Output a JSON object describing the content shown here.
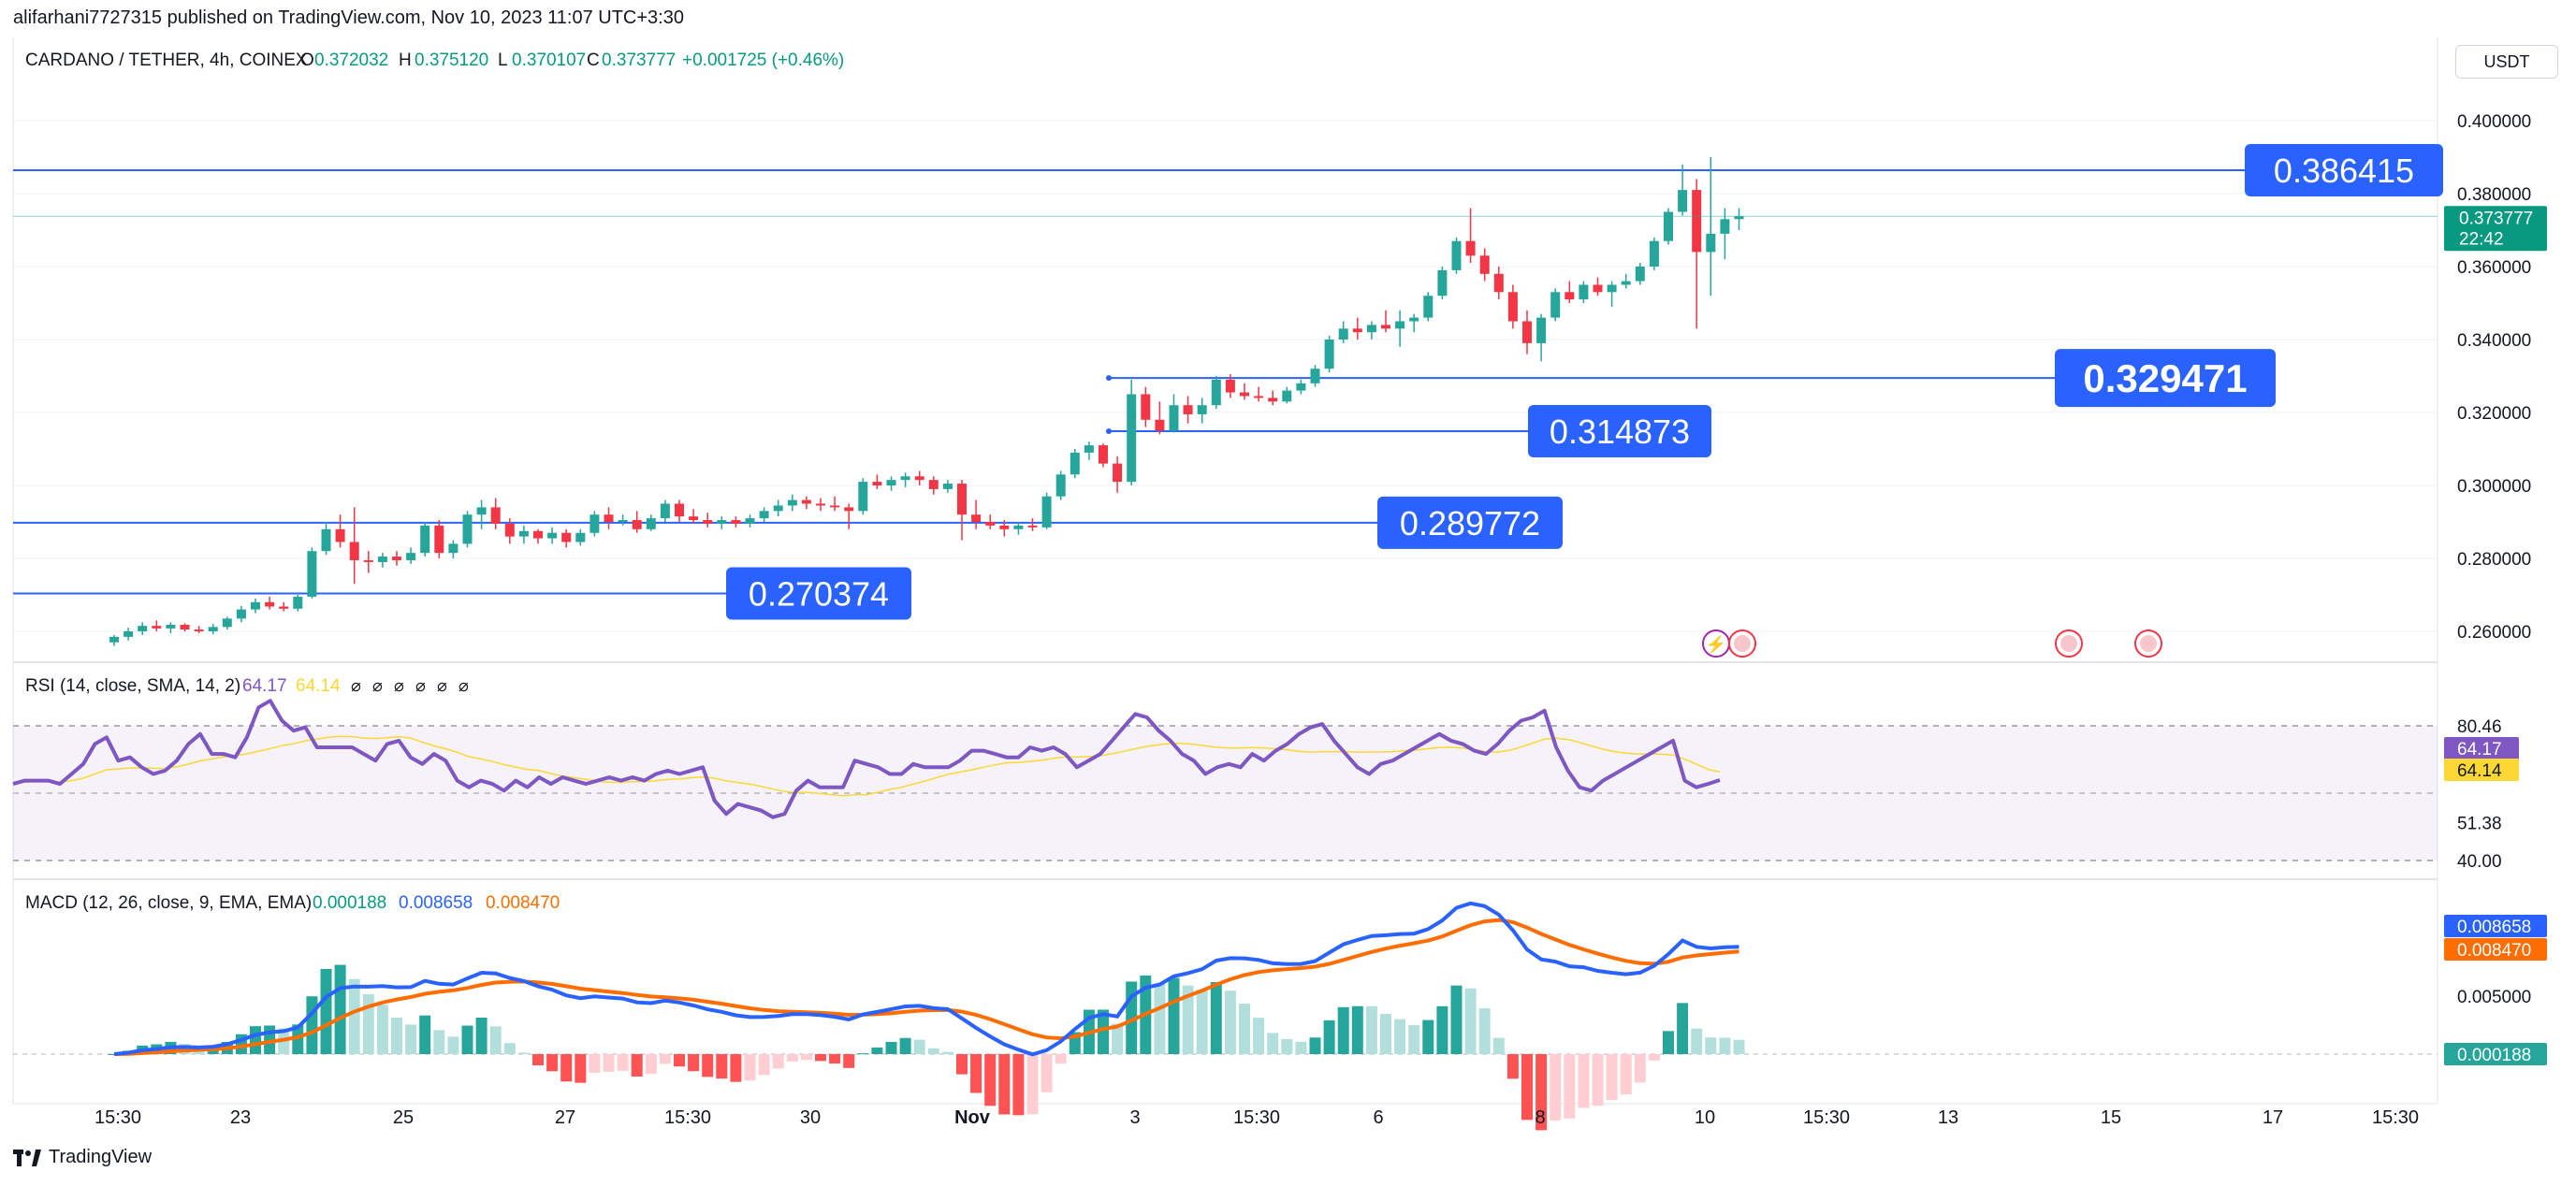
{
  "header": {
    "published": "alifarhani7727315 published on TradingView.com, Nov 10, 2023 11:07 UTC+3:30"
  },
  "toolbar": {
    "currency": "USDT"
  },
  "legend": {
    "symbol": "CARDANO / TETHER, 4h, COINEX",
    "o_label": "O",
    "o_val": "0.372032",
    "h_label": "H",
    "h_val": "0.375120",
    "l_label": "L",
    "l_val": "0.370107",
    "c_label": "C",
    "c_val": "0.373777",
    "change": "+0.001725 (+0.46%)"
  },
  "price_axis": {
    "ticks": [
      "0.400000",
      "0.380000",
      "0.360000",
      "0.340000",
      "0.320000",
      "0.300000",
      "0.280000",
      "0.260000"
    ],
    "tick_values": [
      0.4,
      0.38,
      0.36,
      0.34,
      0.32,
      0.3,
      0.28,
      0.26
    ],
    "current_price": "0.373777",
    "countdown": "22:42"
  },
  "levels": [
    {
      "label": "0.386415",
      "value": 0.386415
    },
    {
      "label": "0.329471",
      "value": 0.329471
    },
    {
      "label": "0.314873",
      "value": 0.314873
    },
    {
      "label": "0.289772",
      "value": 0.289772
    },
    {
      "label": "0.270374",
      "value": 0.270374
    }
  ],
  "rsi": {
    "title": "RSI (14, close, SMA, 14, 2)",
    "value": "64.17",
    "sma_value": "64.14",
    "axis_ticks": [
      "80.46",
      "51.38",
      "40.00"
    ],
    "axis_values": [
      80.46,
      51.38,
      40.0
    ]
  },
  "macd": {
    "title": "MACD (12, 26, close, 9, EMA, EMA)",
    "hist_value": "0.000188",
    "macd_value": "0.008658",
    "signal_value": "0.008470",
    "axis_ticks": [
      "0.005000"
    ]
  },
  "time_axis": {
    "labels": [
      "15:30",
      "23",
      "25",
      "27",
      "15:30",
      "30",
      "Nov",
      "3",
      "15:30",
      "6",
      "8",
      "10",
      "15:30",
      "13",
      "15",
      "17",
      "15:30"
    ]
  },
  "footer": {
    "brand": "TradingView"
  },
  "colors": {
    "up": "#26a69a",
    "down": "#f23645",
    "level": "#2962ff",
    "rsi": "#7e57c2",
    "rsi_sma": "#fdd835",
    "macd": "#2962ff",
    "signal": "#ff6d00"
  },
  "chart_data": {
    "type": "candlestick",
    "price_candles_ohlc": [
      [
        0.257,
        0.259,
        0.256,
        0.2585
      ],
      [
        0.2585,
        0.261,
        0.2575,
        0.26
      ],
      [
        0.26,
        0.2625,
        0.259,
        0.2615
      ],
      [
        0.2615,
        0.263,
        0.26,
        0.2608
      ],
      [
        0.2608,
        0.2625,
        0.2595,
        0.2618
      ],
      [
        0.2618,
        0.2622,
        0.26,
        0.2605
      ],
      [
        0.2605,
        0.2615,
        0.2595,
        0.26
      ],
      [
        0.26,
        0.262,
        0.2592,
        0.2612
      ],
      [
        0.2612,
        0.264,
        0.2605,
        0.2635
      ],
      [
        0.2635,
        0.267,
        0.2625,
        0.266
      ],
      [
        0.266,
        0.269,
        0.265,
        0.268
      ],
      [
        0.268,
        0.2695,
        0.266,
        0.2668
      ],
      [
        0.2668,
        0.268,
        0.2655,
        0.2662
      ],
      [
        0.2662,
        0.27,
        0.2655,
        0.2695
      ],
      [
        0.2695,
        0.283,
        0.269,
        0.282
      ],
      [
        0.282,
        0.29,
        0.281,
        0.288
      ],
      [
        0.288,
        0.292,
        0.283,
        0.2845
      ],
      [
        0.2845,
        0.294,
        0.273,
        0.2795
      ],
      [
        0.2795,
        0.282,
        0.276,
        0.279
      ],
      [
        0.279,
        0.2815,
        0.2775,
        0.2805
      ],
      [
        0.2805,
        0.282,
        0.278,
        0.2795
      ],
      [
        0.2795,
        0.283,
        0.2785,
        0.2815
      ],
      [
        0.2815,
        0.29,
        0.2805,
        0.289
      ],
      [
        0.289,
        0.2905,
        0.28,
        0.2815
      ],
      [
        0.2815,
        0.285,
        0.28,
        0.284
      ],
      [
        0.284,
        0.293,
        0.283,
        0.292
      ],
      [
        0.292,
        0.296,
        0.288,
        0.294
      ],
      [
        0.294,
        0.2965,
        0.288,
        0.2895
      ],
      [
        0.2895,
        0.291,
        0.284,
        0.286
      ],
      [
        0.286,
        0.289,
        0.284,
        0.2875
      ],
      [
        0.2875,
        0.288,
        0.284,
        0.2855
      ],
      [
        0.2855,
        0.2885,
        0.284,
        0.287
      ],
      [
        0.287,
        0.288,
        0.283,
        0.2845
      ],
      [
        0.2845,
        0.288,
        0.2835,
        0.287
      ],
      [
        0.287,
        0.293,
        0.286,
        0.292
      ],
      [
        0.292,
        0.294,
        0.288,
        0.29
      ],
      [
        0.29,
        0.292,
        0.289,
        0.2905
      ],
      [
        0.2905,
        0.293,
        0.287,
        0.288
      ],
      [
        0.288,
        0.292,
        0.2875,
        0.291
      ],
      [
        0.291,
        0.296,
        0.29,
        0.295
      ],
      [
        0.295,
        0.296,
        0.29,
        0.2915
      ],
      [
        0.2915,
        0.2935,
        0.2895,
        0.2905
      ],
      [
        0.2905,
        0.2925,
        0.2885,
        0.2895
      ],
      [
        0.2895,
        0.2915,
        0.288,
        0.2905
      ],
      [
        0.2905,
        0.2915,
        0.2885,
        0.2895
      ],
      [
        0.2895,
        0.292,
        0.2885,
        0.291
      ],
      [
        0.291,
        0.294,
        0.29,
        0.293
      ],
      [
        0.293,
        0.296,
        0.2915,
        0.2945
      ],
      [
        0.2945,
        0.2975,
        0.293,
        0.296
      ],
      [
        0.296,
        0.297,
        0.2935,
        0.295
      ],
      [
        0.295,
        0.2965,
        0.293,
        0.2945
      ],
      [
        0.2945,
        0.297,
        0.293,
        0.294
      ],
      [
        0.294,
        0.295,
        0.288,
        0.293
      ],
      [
        0.293,
        0.302,
        0.292,
        0.301
      ],
      [
        0.301,
        0.303,
        0.299,
        0.3
      ],
      [
        0.3,
        0.3025,
        0.2985,
        0.3015
      ],
      [
        0.3015,
        0.3035,
        0.2995,
        0.3025
      ],
      [
        0.3025,
        0.304,
        0.3,
        0.3015
      ],
      [
        0.3015,
        0.3025,
        0.2975,
        0.299
      ],
      [
        0.299,
        0.3015,
        0.298,
        0.3005
      ],
      [
        0.3005,
        0.3015,
        0.285,
        0.292
      ],
      [
        0.292,
        0.296,
        0.288,
        0.29
      ],
      [
        0.29,
        0.292,
        0.288,
        0.289
      ],
      [
        0.289,
        0.2905,
        0.286,
        0.288
      ],
      [
        0.288,
        0.29,
        0.2865,
        0.289
      ],
      [
        0.289,
        0.291,
        0.2875,
        0.2885
      ],
      [
        0.2885,
        0.298,
        0.288,
        0.297
      ],
      [
        0.297,
        0.304,
        0.296,
        0.303
      ],
      [
        0.303,
        0.31,
        0.302,
        0.309
      ],
      [
        0.309,
        0.312,
        0.307,
        0.311
      ],
      [
        0.311,
        0.3115,
        0.305,
        0.306
      ],
      [
        0.306,
        0.308,
        0.298,
        0.301
      ],
      [
        0.301,
        0.329,
        0.3,
        0.325
      ],
      [
        0.325,
        0.327,
        0.316,
        0.318
      ],
      [
        0.318,
        0.323,
        0.314,
        0.315
      ],
      [
        0.315,
        0.325,
        0.3145,
        0.322
      ],
      [
        0.322,
        0.3245,
        0.317,
        0.3195
      ],
      [
        0.3195,
        0.324,
        0.317,
        0.322
      ],
      [
        0.322,
        0.33,
        0.321,
        0.329
      ],
      [
        0.329,
        0.3305,
        0.324,
        0.3255
      ],
      [
        0.3255,
        0.328,
        0.3235,
        0.3245
      ],
      [
        0.3245,
        0.327,
        0.323,
        0.324
      ],
      [
        0.324,
        0.326,
        0.322,
        0.323
      ],
      [
        0.323,
        0.327,
        0.3225,
        0.326
      ],
      [
        0.326,
        0.329,
        0.325,
        0.328
      ],
      [
        0.328,
        0.333,
        0.327,
        0.332
      ],
      [
        0.332,
        0.341,
        0.331,
        0.34
      ],
      [
        0.34,
        0.345,
        0.339,
        0.343
      ],
      [
        0.343,
        0.346,
        0.34,
        0.342
      ],
      [
        0.342,
        0.345,
        0.34,
        0.344
      ],
      [
        0.344,
        0.348,
        0.342,
        0.343
      ],
      [
        0.343,
        0.348,
        0.338,
        0.345
      ],
      [
        0.345,
        0.347,
        0.342,
        0.346
      ],
      [
        0.346,
        0.353,
        0.345,
        0.352
      ],
      [
        0.352,
        0.36,
        0.351,
        0.359
      ],
      [
        0.359,
        0.368,
        0.358,
        0.367
      ],
      [
        0.367,
        0.376,
        0.361,
        0.363
      ],
      [
        0.363,
        0.365,
        0.356,
        0.358
      ],
      [
        0.358,
        0.36,
        0.351,
        0.353
      ],
      [
        0.353,
        0.355,
        0.343,
        0.345
      ],
      [
        0.345,
        0.348,
        0.336,
        0.339
      ],
      [
        0.339,
        0.347,
        0.334,
        0.346
      ],
      [
        0.346,
        0.354,
        0.345,
        0.353
      ],
      [
        0.353,
        0.356,
        0.35,
        0.351
      ],
      [
        0.351,
        0.356,
        0.35,
        0.355
      ],
      [
        0.355,
        0.357,
        0.352,
        0.353
      ],
      [
        0.353,
        0.356,
        0.349,
        0.355
      ],
      [
        0.355,
        0.358,
        0.354,
        0.356
      ],
      [
        0.356,
        0.361,
        0.355,
        0.36
      ],
      [
        0.36,
        0.368,
        0.359,
        0.367
      ],
      [
        0.367,
        0.376,
        0.366,
        0.375
      ],
      [
        0.375,
        0.388,
        0.374,
        0.381
      ],
      [
        0.381,
        0.384,
        0.343,
        0.364
      ],
      [
        0.364,
        0.39,
        0.352,
        0.369
      ],
      [
        0.369,
        0.376,
        0.362,
        0.373
      ],
      [
        0.373,
        0.376,
        0.37,
        0.3738
      ]
    ],
    "rsi_values": [
      63,
      64,
      64,
      64,
      63,
      66,
      69,
      75,
      77,
      70,
      71,
      68,
      66,
      67,
      70,
      75,
      78,
      72,
      72,
      71,
      77,
      86,
      88,
      82,
      79,
      80,
      74,
      74,
      74,
      74,
      72,
      70,
      75,
      76,
      71,
      69,
      72,
      70,
      64,
      62,
      64,
      63,
      61,
      64,
      62,
      65,
      63,
      65,
      64,
      63,
      64,
      65,
      64,
      65,
      64,
      66,
      67,
      66,
      67,
      68,
      58,
      54,
      57,
      56,
      55,
      53,
      54,
      61,
      64,
      62,
      62,
      62,
      70,
      69,
      68,
      66,
      66,
      69,
      68,
      68,
      68,
      70,
      73,
      73,
      72,
      71,
      71,
      74,
      73,
      74,
      72,
      68,
      70,
      72,
      76,
      80,
      84,
      83,
      79,
      76,
      72,
      70,
      66,
      68,
      69,
      68,
      72,
      70,
      73,
      75,
      78,
      80,
      81,
      76,
      72,
      68,
      66,
      69,
      70,
      72,
      74,
      76,
      78,
      76,
      75,
      73,
      72,
      75,
      79,
      82,
      83,
      85,
      74,
      67,
      62,
      61,
      64,
      66,
      68,
      70,
      72,
      74,
      76,
      64,
      62,
      63,
      64.17
    ],
    "macd_line": [],
    "signal_line": []
  }
}
